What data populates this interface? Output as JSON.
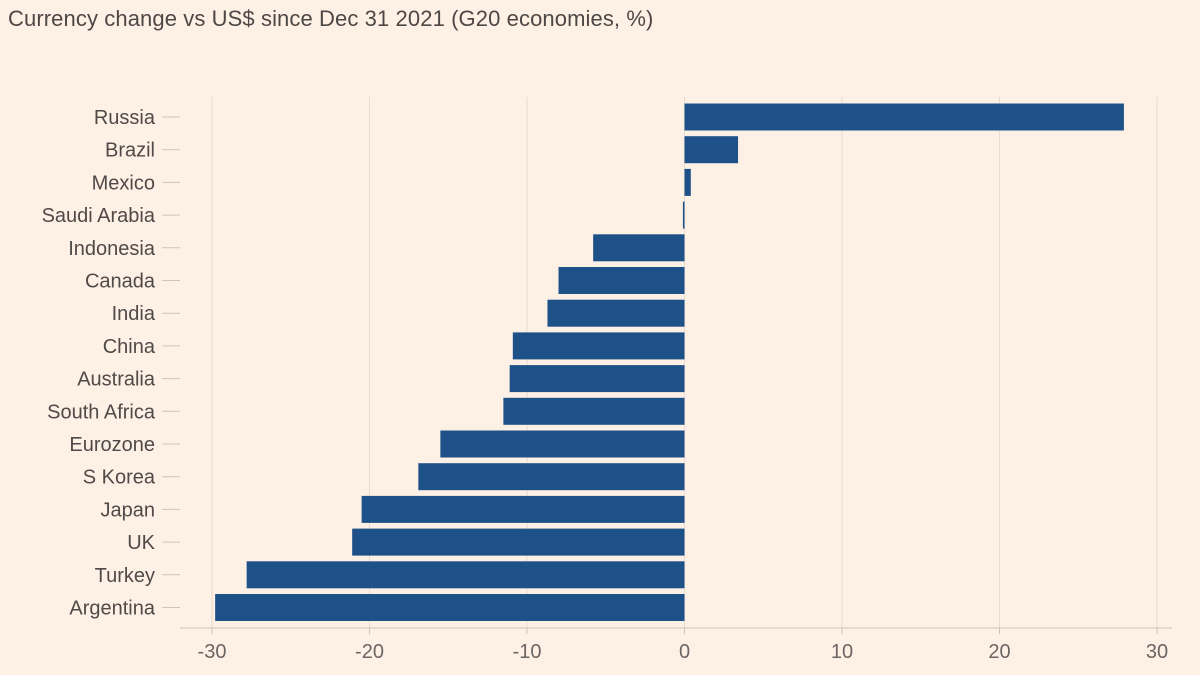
{
  "chart_data": {
    "type": "bar",
    "orientation": "horizontal",
    "title": "Currency change vs US$ since Dec 31 2021 (G20 economies, %)",
    "xlabel": "",
    "ylabel": "",
    "xlim": [
      -32,
      30
    ],
    "xticks": [
      -30,
      -20,
      -10,
      0,
      10,
      20,
      30
    ],
    "grid": true,
    "bar_color": "#1f5189",
    "categories": [
      "Russia",
      "Brazil",
      "Mexico",
      "Saudi Arabia",
      "Indonesia",
      "Canada",
      "India",
      "China",
      "Australia",
      "South Africa",
      "Eurozone",
      "S Korea",
      "Japan",
      "UK",
      "Turkey",
      "Argentina"
    ],
    "values": [
      27.9,
      3.4,
      0.4,
      -0.1,
      -5.8,
      -8.0,
      -8.7,
      -10.9,
      -11.1,
      -11.5,
      -15.5,
      -16.9,
      -20.5,
      -21.1,
      -27.8,
      -29.8
    ]
  }
}
